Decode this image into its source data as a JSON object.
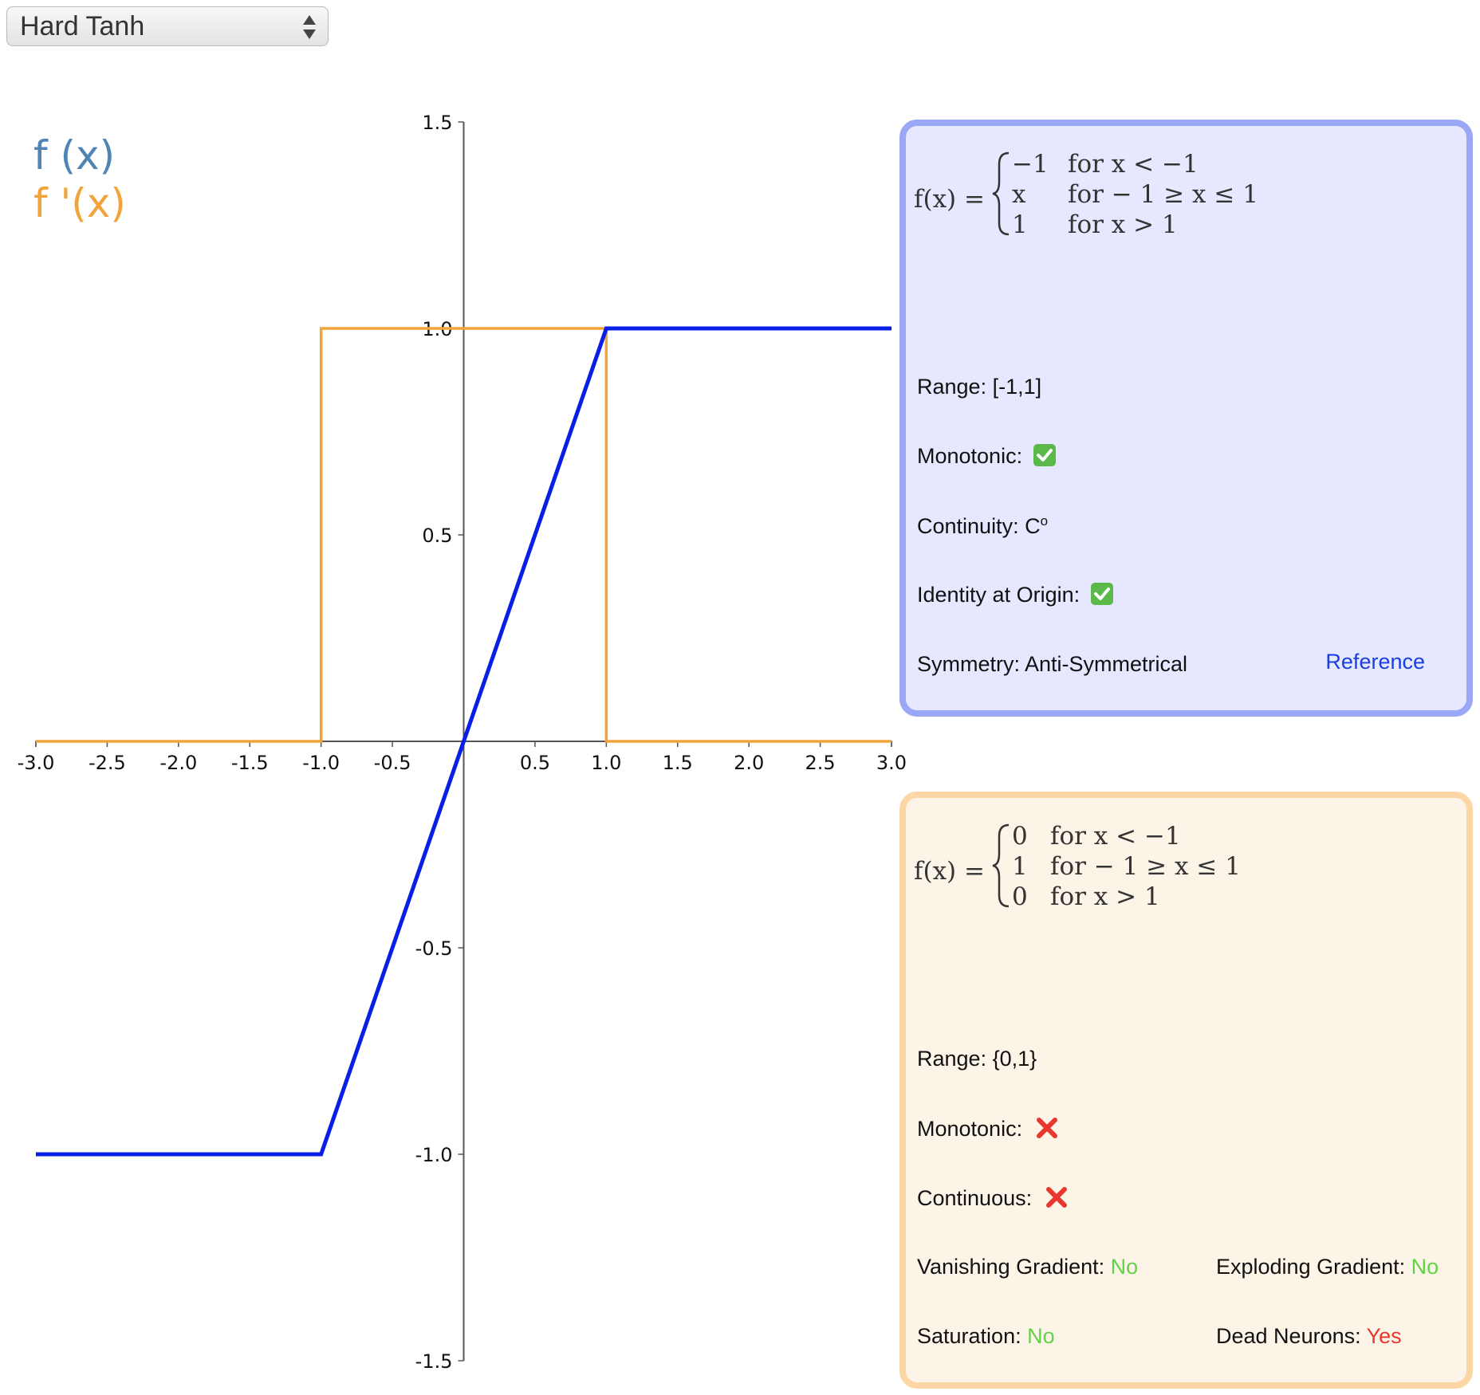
{
  "selector": {
    "value": "Hard Tanh"
  },
  "legend": {
    "f_label": "f (x)",
    "fp_label": "f '(x)"
  },
  "colors": {
    "f": "#0a1fe6",
    "fp": "#f2a33a",
    "legend_f": "#4f84b4",
    "legend_fp": "#f2a33a",
    "axis": "#555555",
    "panel_f_bg": "#e5e8ff",
    "panel_f_border": "#9aa6f6",
    "panel_fp_bg": "#fdf4e8",
    "panel_fp_border": "#fcd7a5",
    "good": "#62d246",
    "bad": "#e8372e",
    "link": "#1a3ee0"
  },
  "chart_data": {
    "type": "line",
    "xlim": [
      -3.0,
      3.0
    ],
    "ylim": [
      -1.5,
      1.5
    ],
    "x_ticks": [
      "-3.0",
      "-2.5",
      "-2.0",
      "-1.5",
      "-1.0",
      "-0.5",
      "0.5",
      "1.0",
      "1.5",
      "2.0",
      "2.5",
      "3.0"
    ],
    "x_tick_values": [
      -3.0,
      -2.5,
      -2.0,
      -1.5,
      -1.0,
      -0.5,
      0.5,
      1.0,
      1.5,
      2.0,
      2.5,
      3.0
    ],
    "y_ticks": [
      "1.5",
      "1.0",
      "0.5",
      "-0.5",
      "-1.0",
      "-1.5"
    ],
    "y_tick_values": [
      1.5,
      1.0,
      0.5,
      -0.5,
      -1.0,
      -1.5
    ],
    "grid": false,
    "series": [
      {
        "name": "f (x)",
        "x": [
          -3.0,
          -1.0,
          1.0,
          3.0
        ],
        "y": [
          -1.0,
          -1.0,
          1.0,
          1.0
        ]
      },
      {
        "name": "f '(x)",
        "x": [
          -3.0,
          -1.0,
          -1.0,
          1.0,
          1.0,
          3.0
        ],
        "y": [
          0.0,
          0.0,
          1.0,
          1.0,
          0.0,
          0.0
        ]
      }
    ]
  },
  "function_panel": {
    "lhs": "f(x) =",
    "cases": [
      {
        "value": "−1",
        "condition": "for x < −1"
      },
      {
        "value": "x",
        "condition": "for  − 1 ≥ x ≤ 1"
      },
      {
        "value": "1",
        "condition": "for x > 1"
      }
    ],
    "range_label": "Range:",
    "range_value": "[-1,1]",
    "monotonic_label": "Monotonic:",
    "continuity_label": "Continuity:",
    "continuity_value": "C",
    "continuity_sup": "o",
    "identity_label": "Identity at Origin:",
    "symmetry_label": "Symmetry:",
    "symmetry_value": "Anti-Symmetrical",
    "reference_label": "Reference"
  },
  "derivative_panel": {
    "lhs": "f(x) =",
    "cases": [
      {
        "value": "0",
        "condition": "for x < −1"
      },
      {
        "value": "1",
        "condition": "for  − 1 ≥ x ≤ 1"
      },
      {
        "value": "0",
        "condition": "for x > 1"
      }
    ],
    "range_label": "Range:",
    "range_value": "{0,1}",
    "monotonic_label": "Monotonic:",
    "continuous_label": "Continuous:",
    "vanishing_label": "Vanishing Gradient:",
    "vanishing_value": "No",
    "exploding_label": "Exploding Gradient:",
    "exploding_value": "No",
    "saturation_label": "Saturation:",
    "saturation_value": "No",
    "dead_label": "Dead Neurons:",
    "dead_value": "Yes"
  }
}
